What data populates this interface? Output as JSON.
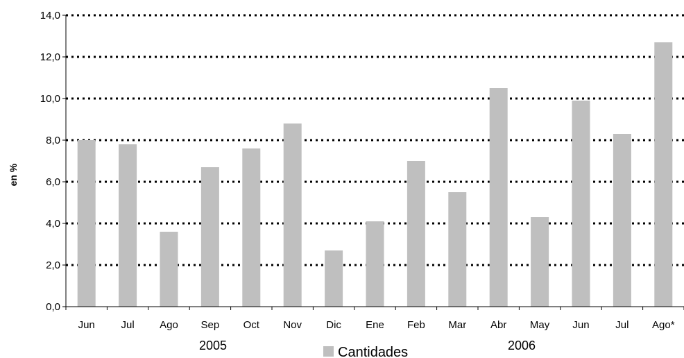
{
  "chart_data": {
    "type": "bar",
    "ylabel": "en %",
    "ylim": [
      0,
      14
    ],
    "yticks": [
      "0,0",
      "2,0",
      "4,0",
      "6,0",
      "8,0",
      "10,0",
      "12,0",
      "14,0"
    ],
    "categories": [
      "Jun",
      "Jul",
      "Ago",
      "Sep",
      "Oct",
      "Nov",
      "Dic",
      "Ene",
      "Feb",
      "Mar",
      "Abr",
      "May",
      "Jun",
      "Jul",
      "Ago*"
    ],
    "year_groups": [
      "2005",
      "2006"
    ],
    "series": [
      {
        "name": "Cantidades",
        "color": "#bfbfbf",
        "values": [
          8.0,
          7.8,
          3.6,
          6.7,
          7.6,
          8.8,
          2.7,
          4.1,
          7.0,
          5.5,
          10.5,
          4.3,
          9.9,
          8.3,
          12.7
        ]
      }
    ],
    "grid": "dotted-horizontal",
    "legend": "bottom-center"
  }
}
